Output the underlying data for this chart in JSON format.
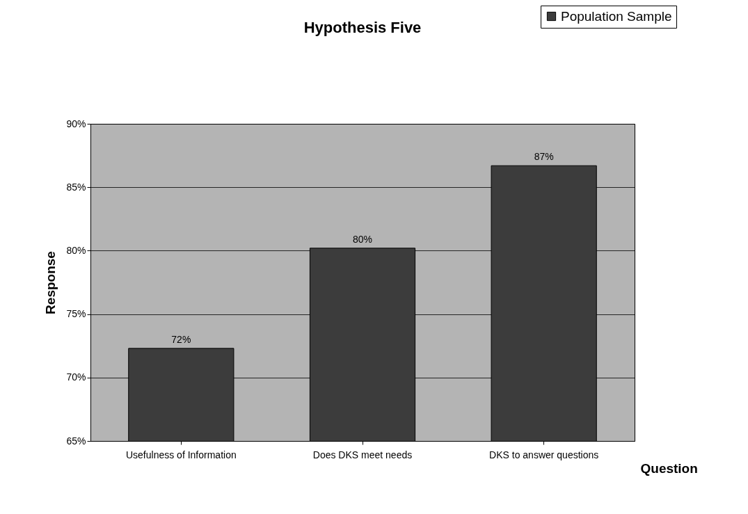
{
  "chart_data": {
    "type": "bar",
    "title": "Hypothesis Five",
    "xlabel": "Question",
    "ylabel": "Response",
    "categories": [
      "Usefulness of Information",
      "Does DKS meet needs",
      "DKS to answer questions"
    ],
    "series": [
      {
        "name": "Population Sample",
        "color": "#3c3c3c",
        "values": [
          72.3,
          80.2,
          86.7
        ],
        "value_labels": [
          "72%",
          "80%",
          "87%"
        ]
      }
    ],
    "ylim": [
      65,
      90
    ],
    "yticks": [
      {
        "value": 65,
        "label": "65%"
      },
      {
        "value": 70,
        "label": "70%"
      },
      {
        "value": 75,
        "label": "75%"
      },
      {
        "value": 80,
        "label": "80%"
      },
      {
        "value": 85,
        "label": "85%"
      },
      {
        "value": 90,
        "label": "90%"
      }
    ],
    "grid": "y",
    "legend": "top right"
  }
}
